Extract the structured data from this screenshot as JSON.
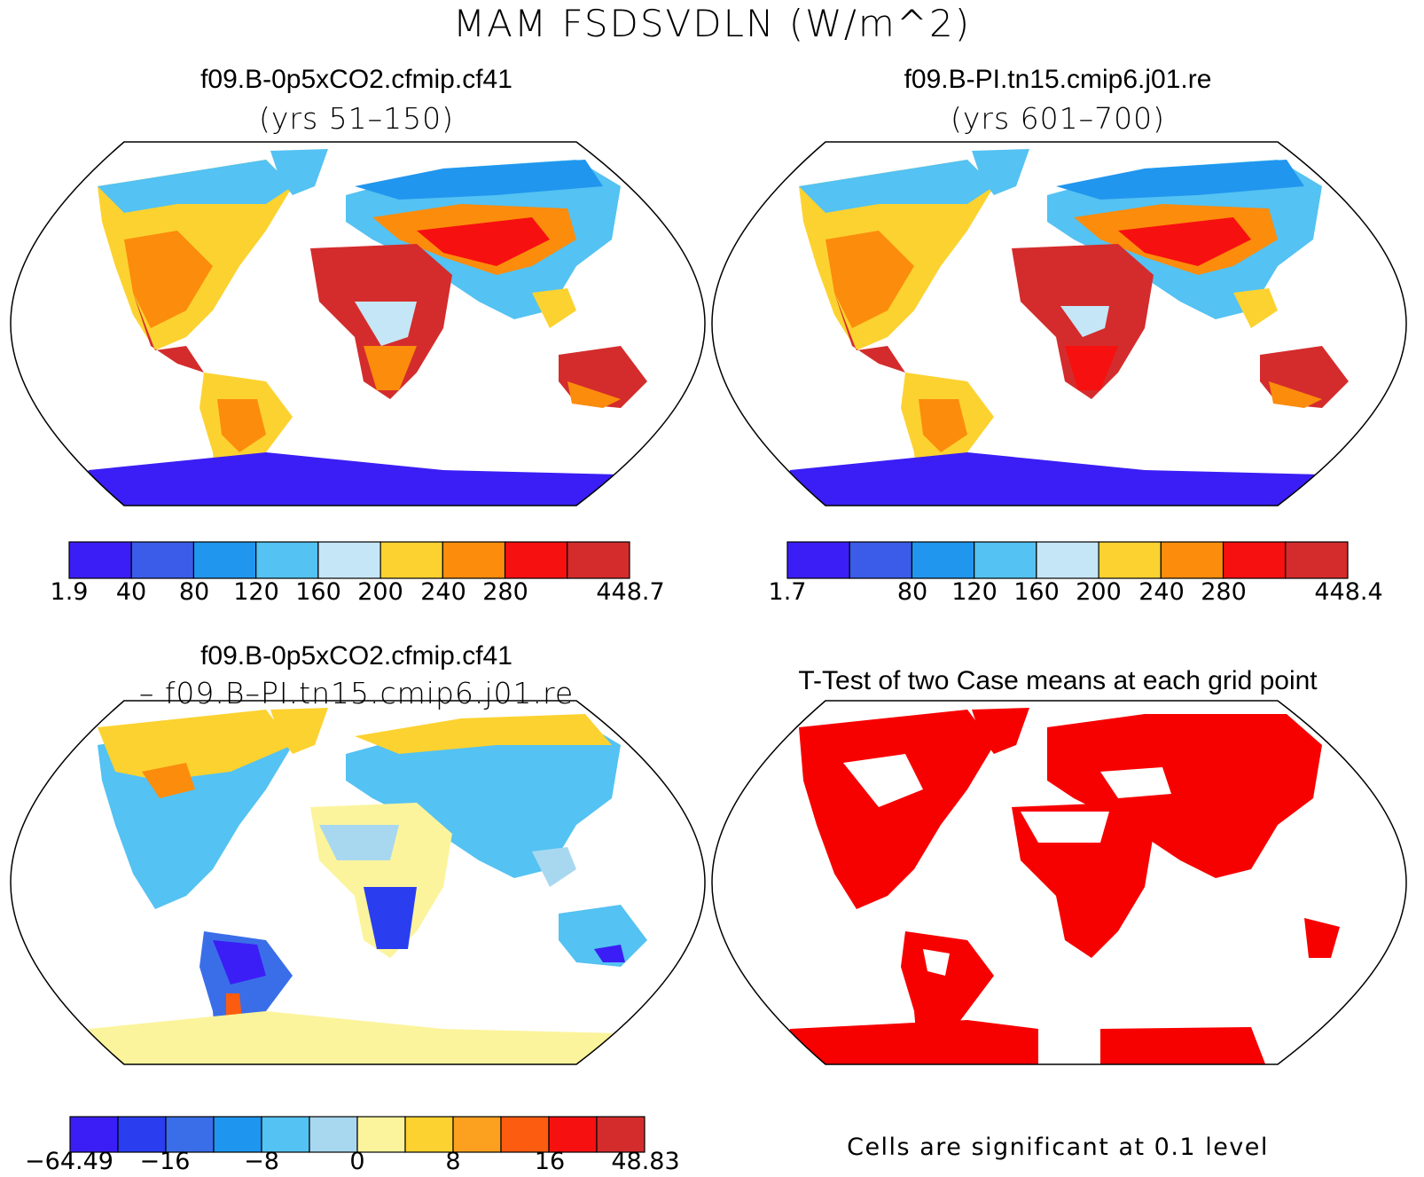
{
  "figure": {
    "title": "MAM FSDSVDLN (W/m^2)"
  },
  "panels": {
    "p1": {
      "title": "f09.B-0p5xCO2.cfmip.cf41",
      "subtitle": "(yrs 51–150)"
    },
    "p2": {
      "title": "f09.B-PI.tn15.cmip6.j01.re",
      "subtitle": "(yrs 601–700)"
    },
    "p3": {
      "title": "f09.B-0p5xCO2.cfmip.cf41",
      "subtitle": "– f09.B–PI.tn15.cmip6.j01.re"
    },
    "p4": {
      "title": "T-Test of two Case means at each grid point",
      "note": "Cells are significant at 0.1 level"
    }
  },
  "colorbars": {
    "cb1": {
      "colors": [
        "#3b1ef5",
        "#3a5ce8",
        "#2196ee",
        "#54c2f2",
        "#c5e6f6",
        "#fcd230",
        "#fc8c0c",
        "#f71010",
        "#d42c2c"
      ],
      "labels": [
        "1.9",
        "40",
        "80",
        "120",
        "160",
        "200",
        "240",
        "280",
        "448.7"
      ]
    },
    "cb2": {
      "colors": [
        "#3b1ef5",
        "#3a5ce8",
        "#2196ee",
        "#54c2f2",
        "#c5e6f6",
        "#fcd230",
        "#fc8c0c",
        "#f71010",
        "#d42c2c"
      ],
      "labels": [
        "1.7",
        "80",
        "120",
        "160",
        "200",
        "240",
        "280",
        "448.4"
      ]
    },
    "cb3": {
      "colors": [
        "#3b1ef5",
        "#2a3ef0",
        "#3a6ee8",
        "#1e96f0",
        "#54c2f2",
        "#a8d8f0",
        "#fcf49c",
        "#fcd230",
        "#fca020",
        "#fc5c10",
        "#f71010",
        "#d42c2c"
      ],
      "labels": [
        "−64.49",
        "−16",
        "−8",
        "0",
        "8",
        "16",
        "48.83"
      ]
    }
  },
  "map_fills": {
    "levels": {
      "antarctic": "#3b1ef5",
      "subpolar": "#54c2f2",
      "temperate": "#fcd230",
      "warm": "#fc8c0c",
      "desert": "#d42c2c",
      "tropical_forest": "#c5e6f6"
    },
    "diff": {
      "antarctic": "#fcf49c",
      "north": "#fcd230",
      "midlat": "#54c2f2",
      "sahara": "#fcf49c",
      "africa_south": "#2a3ef0",
      "amazon": "#3a6ee8",
      "andes": "#fc5c10",
      "australia": "#54c2f2"
    },
    "ttest": {
      "significant": "#f70000"
    }
  }
}
